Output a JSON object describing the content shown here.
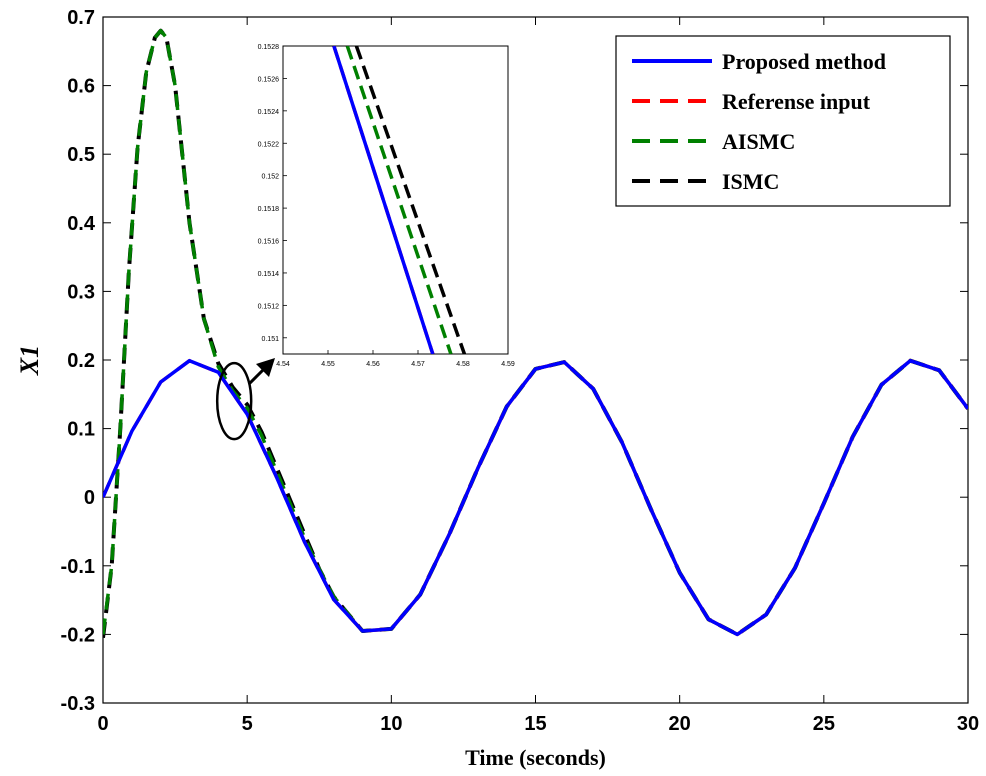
{
  "chart_data": {
    "type": "line",
    "title": "",
    "xlabel": "Time (seconds)",
    "ylabel": "X1",
    "xlim": [
      0,
      30
    ],
    "ylim": [
      -0.3,
      0.7
    ],
    "xticks": [
      "0",
      "5",
      "10",
      "15",
      "20",
      "25",
      "30"
    ],
    "yticks": [
      "-0.3",
      "-0.2",
      "-0.1",
      "0",
      "0.1",
      "0.2",
      "0.3",
      "0.4",
      "0.5",
      "0.6",
      "0.7"
    ],
    "grid": false,
    "legend_position": "top-right",
    "series": [
      {
        "name": "Proposed method",
        "color": "#0000ff",
        "style": "solid",
        "x": [
          0,
          1,
          2,
          3,
          4,
          5,
          6,
          7,
          8,
          9,
          10,
          11,
          12,
          13,
          14,
          15,
          16,
          17,
          18,
          19,
          20,
          21,
          22,
          23,
          24,
          25,
          26,
          27,
          28,
          29,
          30
        ],
        "y": [
          0.0,
          0.096,
          0.168,
          0.199,
          0.182,
          0.121,
          0.031,
          -0.066,
          -0.149,
          -0.195,
          -0.192,
          -0.142,
          -0.055,
          0.042,
          0.132,
          0.187,
          0.197,
          0.158,
          0.08,
          -0.017,
          -0.11,
          -0.178,
          -0.2,
          -0.171,
          -0.103,
          -0.009,
          0.088,
          0.164,
          0.199,
          0.185,
          0.129
        ]
      },
      {
        "name": "Referense input",
        "color": "#ff0000",
        "style": "dashed",
        "x": [
          0,
          1,
          2,
          3,
          4,
          5,
          6,
          7,
          8,
          9,
          10,
          11,
          12,
          13,
          14,
          15,
          16,
          17,
          18,
          19,
          20,
          21,
          22,
          23,
          24,
          25,
          26,
          27,
          28,
          29,
          30
        ],
        "y": [
          0.0,
          0.096,
          0.168,
          0.199,
          0.182,
          0.121,
          0.031,
          -0.066,
          -0.149,
          -0.195,
          -0.192,
          -0.142,
          -0.055,
          0.042,
          0.132,
          0.187,
          0.197,
          0.158,
          0.08,
          -0.017,
          -0.11,
          -0.178,
          -0.2,
          -0.171,
          -0.103,
          -0.009,
          0.088,
          0.164,
          0.199,
          0.185,
          0.129
        ]
      },
      {
        "name": "AISMC",
        "color": "#008000",
        "style": "dashed",
        "x": [
          0,
          0.3,
          0.6,
          0.9,
          1.2,
          1.5,
          1.8,
          2.0,
          2.2,
          2.5,
          3.0,
          3.5,
          4.0,
          4.5,
          5.0,
          5.5,
          6.0,
          6.5,
          7.0,
          7.5,
          8.0,
          9.0,
          10.0,
          11.0,
          12.0,
          13.0,
          14.0,
          15.0,
          16.0,
          17.0,
          18.0,
          19.0,
          20.0,
          21.0,
          22.0,
          23.0,
          24.0,
          25.0,
          26.0,
          27.0,
          28.0,
          29.0,
          30.0
        ],
        "y": [
          -0.2,
          -0.1,
          0.1,
          0.33,
          0.51,
          0.62,
          0.67,
          0.68,
          0.67,
          0.6,
          0.4,
          0.26,
          0.19,
          0.155,
          0.13,
          0.09,
          0.04,
          -0.01,
          -0.06,
          -0.105,
          -0.145,
          -0.195,
          -0.192,
          -0.142,
          -0.055,
          0.042,
          0.132,
          0.187,
          0.197,
          0.158,
          0.08,
          -0.017,
          -0.11,
          -0.178,
          -0.2,
          -0.171,
          -0.103,
          -0.009,
          0.088,
          0.164,
          0.199,
          0.185,
          0.129
        ]
      },
      {
        "name": "ISMC",
        "color": "#000000",
        "style": "dashed",
        "x": [
          0,
          0.3,
          0.6,
          0.9,
          1.2,
          1.5,
          1.8,
          2.0,
          2.2,
          2.5,
          3.0,
          3.5,
          4.0,
          4.5,
          5.0,
          5.5,
          6.0,
          6.5,
          7.0,
          7.5,
          8.0,
          9.0,
          10.0,
          11.0,
          12.0,
          13.0,
          14.0,
          15.0,
          16.0,
          17.0,
          18.0,
          19.0,
          20.0,
          21.0,
          22.0,
          23.0,
          24.0,
          25.0,
          26.0,
          27.0,
          28.0,
          29.0,
          30.0
        ],
        "y": [
          -0.205,
          -0.1,
          0.1,
          0.33,
          0.51,
          0.62,
          0.67,
          0.68,
          0.67,
          0.6,
          0.4,
          0.26,
          0.195,
          0.16,
          0.135,
          0.095,
          0.045,
          -0.005,
          -0.055,
          -0.105,
          -0.145,
          -0.195,
          -0.192,
          -0.142,
          -0.055,
          0.042,
          0.132,
          0.187,
          0.197,
          0.158,
          0.08,
          -0.017,
          -0.11,
          -0.178,
          -0.2,
          -0.171,
          -0.103,
          -0.009,
          0.088,
          0.164,
          0.199,
          0.185,
          0.129
        ]
      }
    ],
    "inset": {
      "xlim": [
        4.54,
        4.59
      ],
      "ylim": [
        0.1509,
        0.1528
      ],
      "xticks": [
        "4.54",
        "4.55",
        "4.56",
        "4.57",
        "4.58",
        "4.59"
      ],
      "yticks": [
        "0.151",
        "0.1512",
        "0.1514",
        "0.1516",
        "0.1518",
        "0.152",
        "0.1522",
        "0.1524",
        "0.1526",
        "0.1528"
      ],
      "series": [
        {
          "name": "Proposed method",
          "x": [
            4.5513,
            4.5733
          ],
          "y": [
            0.1528,
            0.1509
          ]
        },
        {
          "name": "Referense input",
          "x": [
            4.5513,
            4.5733
          ],
          "y": [
            0.1528,
            0.1509
          ]
        },
        {
          "name": "AISMC",
          "x": [
            4.5543,
            4.5773
          ],
          "y": [
            0.1528,
            0.1509
          ]
        },
        {
          "name": "ISMC",
          "x": [
            4.5563,
            4.5803
          ],
          "y": [
            0.1528,
            0.1509
          ]
        }
      ]
    }
  }
}
